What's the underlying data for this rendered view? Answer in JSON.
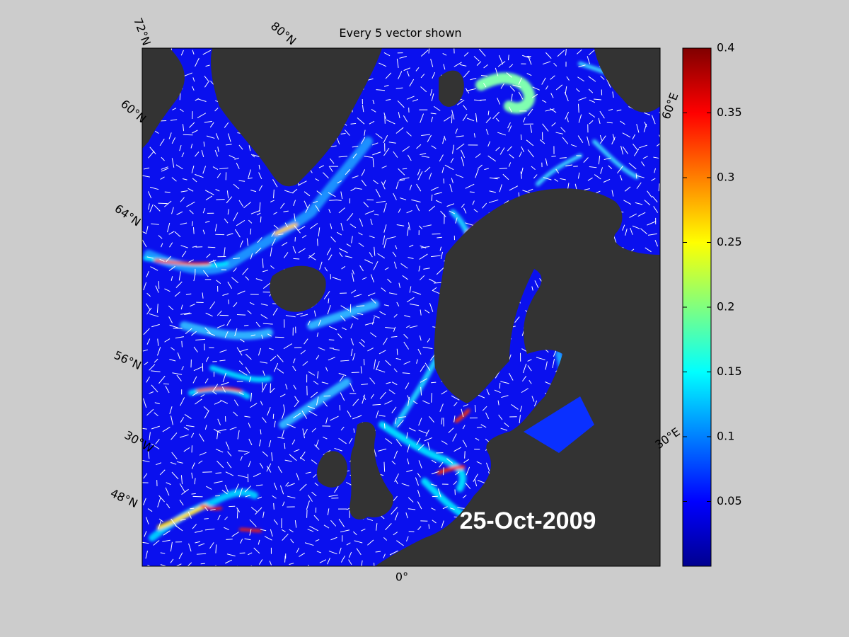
{
  "title": "Every 5 vector shown",
  "date": "25-Oct-2009",
  "graticule_labels": [
    "72°N",
    "80°N",
    "60°N",
    "60°E",
    "64°N",
    "56°N",
    "30°W",
    "30°E",
    "48°N",
    "0°"
  ],
  "colorbar": {
    "lim": [
      0,
      0.4
    ],
    "ticks": [
      0.05,
      0.1,
      0.15,
      0.2,
      0.25,
      0.3,
      0.35,
      0.4
    ]
  }
}
